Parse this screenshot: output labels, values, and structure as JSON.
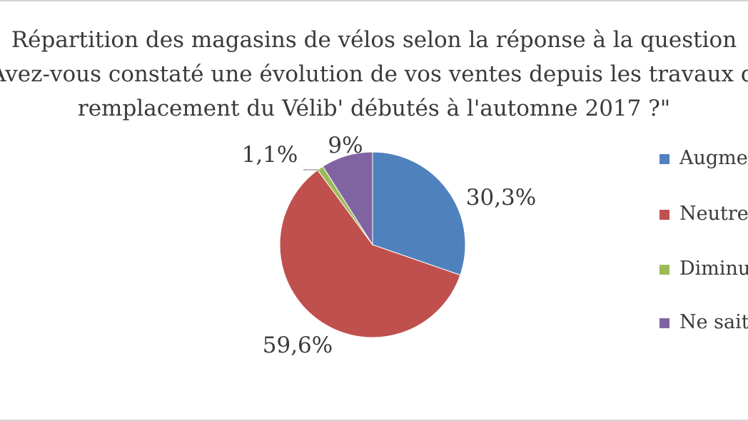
{
  "chart_data": {
    "type": "pie",
    "title_lines": [
      "Répartition des magasins de vélos selon la réponse à la question",
      "\"Avez-vous constaté une évolution de vos ventes depuis les travaux de",
      "remplacement du Vélib' débutés à l'automne 2017 ?\""
    ],
    "slices": [
      {
        "name": "Augmentation",
        "value": 30.3,
        "label": "30,3%",
        "color": "#4f81bd"
      },
      {
        "name": "Neutre",
        "value": 59.6,
        "label": "59,6%",
        "color": "#c0504d"
      },
      {
        "name": "Diminution",
        "value": 1.1,
        "label": "1,1%",
        "color": "#9bbb59"
      },
      {
        "name": "Ne sait pas",
        "value": 9,
        "label": "9%",
        "color": "#8064a2"
      }
    ],
    "legend_position": "right",
    "start_angle": "12 o'clock",
    "direction": "clockwise"
  }
}
